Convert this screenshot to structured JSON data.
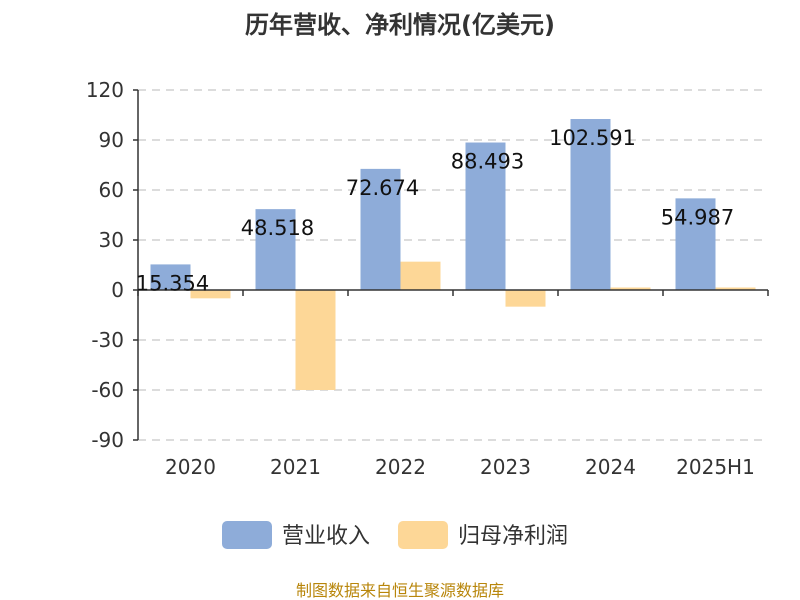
{
  "chart_data": {
    "type": "bar",
    "title": "历年营收、净利情况(亿美元)",
    "categories": [
      "2020",
      "2021",
      "2022",
      "2023",
      "2024",
      "2025H1"
    ],
    "ylim": [
      -90,
      120
    ],
    "yticks": [
      "120",
      "90",
      "60",
      "30",
      "0",
      "-30",
      "-60",
      "-90"
    ],
    "grid": true,
    "legend_position": "bottom",
    "series": [
      {
        "name": "营业收入",
        "color": "#8eacd9",
        "values": [
          15.354,
          48.518,
          72.674,
          88.493,
          102.591,
          54.987
        ],
        "labels": [
          "15.354",
          "48.518",
          "72.674",
          "88.493",
          "102.591",
          "54.987"
        ]
      },
      {
        "name": "归母净利润",
        "color": "#fdd797",
        "values": [
          -5,
          -60,
          17,
          -10,
          1.5,
          1.5
        ]
      }
    ]
  },
  "source": "制图数据来自恒生聚源数据库"
}
